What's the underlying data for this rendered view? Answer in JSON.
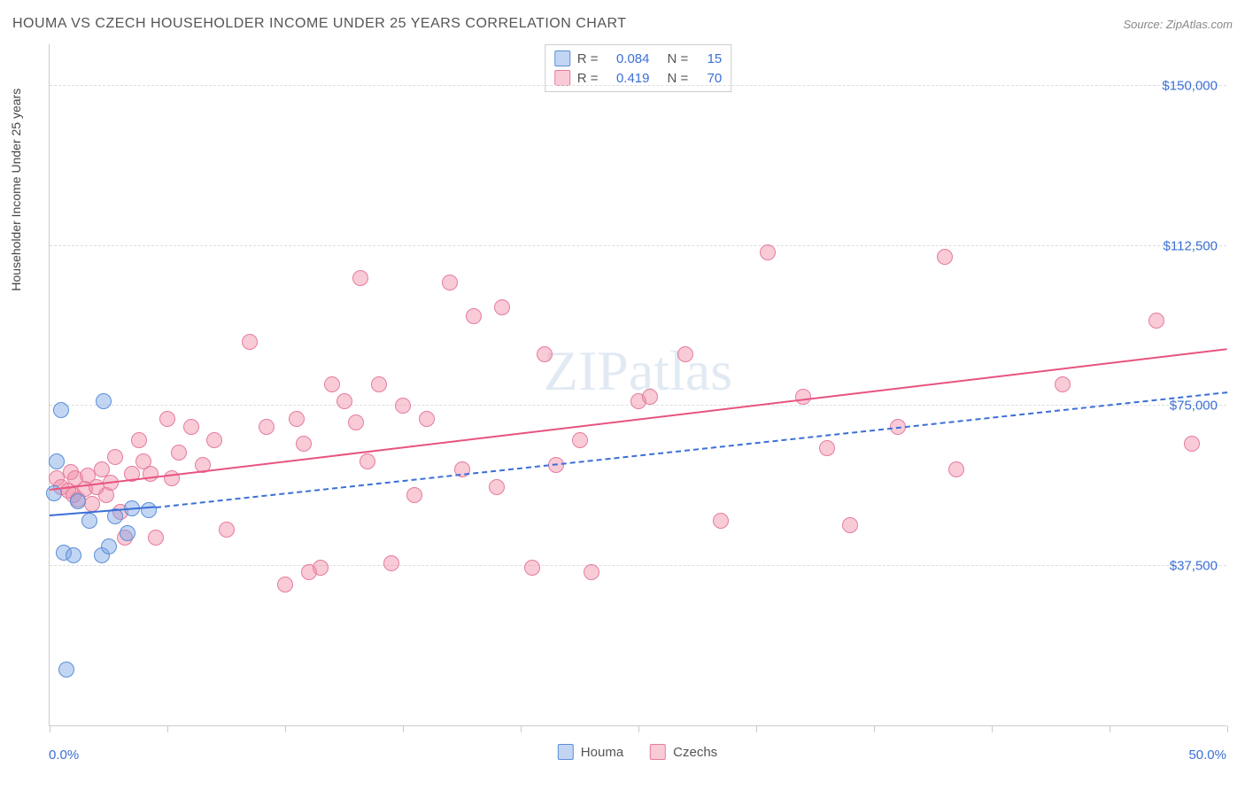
{
  "title": "HOUMA VS CZECH HOUSEHOLDER INCOME UNDER 25 YEARS CORRELATION CHART",
  "source": "Source: ZipAtlas.com",
  "watermark": {
    "bold": "ZIP",
    "rest": "atlas"
  },
  "y_axis": {
    "title": "Householder Income Under 25 years",
    "min": 0,
    "max": 160000,
    "ticks": [
      37500,
      75000,
      112500,
      150000
    ],
    "tick_labels": [
      "$37,500",
      "$75,000",
      "$112,500",
      "$150,000"
    ],
    "label_color": "#3b6fd6"
  },
  "x_axis": {
    "min": 0,
    "max": 50,
    "min_label": "0.0%",
    "max_label": "50.0%",
    "label_color": "#3b6fd6",
    "tick_positions": [
      0,
      5,
      10,
      15,
      20,
      25,
      30,
      35,
      40,
      45,
      50
    ]
  },
  "series": {
    "houma": {
      "label": "Houma",
      "fill": "rgba(120,165,230,0.45)",
      "stroke": "#5a8ed6",
      "line_color": "#3b6fd6",
      "line_dash_extrapolate": "6,6",
      "R": "0.084",
      "N": "15",
      "trend": {
        "x1": 0,
        "y1": 49000,
        "x2": 4.5,
        "y2": 51000,
        "x2_ext": 50,
        "y2_ext": 78000
      },
      "points": [
        [
          0.2,
          54500
        ],
        [
          0.3,
          62000
        ],
        [
          0.5,
          74000
        ],
        [
          0.7,
          13000
        ],
        [
          0.6,
          40500
        ],
        [
          1.0,
          40000
        ],
        [
          1.2,
          52500
        ],
        [
          1.7,
          48000
        ],
        [
          2.2,
          40000
        ],
        [
          2.3,
          76000
        ],
        [
          2.5,
          42000
        ],
        [
          2.8,
          49000
        ],
        [
          3.3,
          45000
        ],
        [
          3.5,
          51000
        ],
        [
          4.2,
          50500
        ]
      ]
    },
    "czechs": {
      "label": "Czechs",
      "fill": "rgba(240,140,165,0.45)",
      "stroke": "#e67ba0",
      "line_color": "#e8537f",
      "R": "0.419",
      "N": "70",
      "trend": {
        "x1": 0,
        "y1": 55000,
        "x2": 50,
        "y2": 88000
      },
      "points": [
        [
          0.3,
          58000
        ],
        [
          0.5,
          56000
        ],
        [
          0.8,
          55000
        ],
        [
          0.9,
          59500
        ],
        [
          1.0,
          54000
        ],
        [
          1.1,
          58000
        ],
        [
          1.2,
          53000
        ],
        [
          1.5,
          55500
        ],
        [
          1.6,
          58500
        ],
        [
          1.8,
          52000
        ],
        [
          2.0,
          56000
        ],
        [
          2.2,
          60000
        ],
        [
          2.4,
          54000
        ],
        [
          2.6,
          57000
        ],
        [
          2.8,
          63000
        ],
        [
          3.0,
          50000
        ],
        [
          3.2,
          44000
        ],
        [
          3.5,
          59000
        ],
        [
          3.8,
          67000
        ],
        [
          4.0,
          62000
        ],
        [
          4.3,
          59000
        ],
        [
          4.5,
          44000
        ],
        [
          5.0,
          72000
        ],
        [
          5.2,
          58000
        ],
        [
          5.5,
          64000
        ],
        [
          6.0,
          70000
        ],
        [
          6.5,
          61000
        ],
        [
          7.0,
          67000
        ],
        [
          7.5,
          46000
        ],
        [
          8.5,
          90000
        ],
        [
          9.2,
          70000
        ],
        [
          10.0,
          33000
        ],
        [
          10.5,
          72000
        ],
        [
          10.8,
          66000
        ],
        [
          11.0,
          36000
        ],
        [
          11.5,
          37000
        ],
        [
          12.0,
          80000
        ],
        [
          12.5,
          76000
        ],
        [
          13.0,
          71000
        ],
        [
          13.2,
          105000
        ],
        [
          13.5,
          62000
        ],
        [
          14.0,
          80000
        ],
        [
          14.5,
          38000
        ],
        [
          15.0,
          75000
        ],
        [
          15.5,
          54000
        ],
        [
          16.0,
          72000
        ],
        [
          17.0,
          104000
        ],
        [
          17.5,
          60000
        ],
        [
          18.0,
          96000
        ],
        [
          19.0,
          56000
        ],
        [
          19.2,
          98000
        ],
        [
          20.5,
          37000
        ],
        [
          21.0,
          87000
        ],
        [
          21.5,
          61000
        ],
        [
          22.5,
          67000
        ],
        [
          23.0,
          36000
        ],
        [
          25.0,
          76000
        ],
        [
          25.5,
          77000
        ],
        [
          27.0,
          87000
        ],
        [
          28.5,
          48000
        ],
        [
          30.5,
          111000
        ],
        [
          32.0,
          77000
        ],
        [
          33.0,
          65000
        ],
        [
          34.0,
          47000
        ],
        [
          36.0,
          70000
        ],
        [
          38.0,
          110000
        ],
        [
          38.5,
          60000
        ],
        [
          43.0,
          80000
        ],
        [
          47.0,
          95000
        ],
        [
          48.5,
          66000
        ]
      ]
    }
  },
  "stats_value_color": "#3b6fd6",
  "point_radius": 9,
  "grid_color": "#dddddd",
  "background": "#ffffff"
}
